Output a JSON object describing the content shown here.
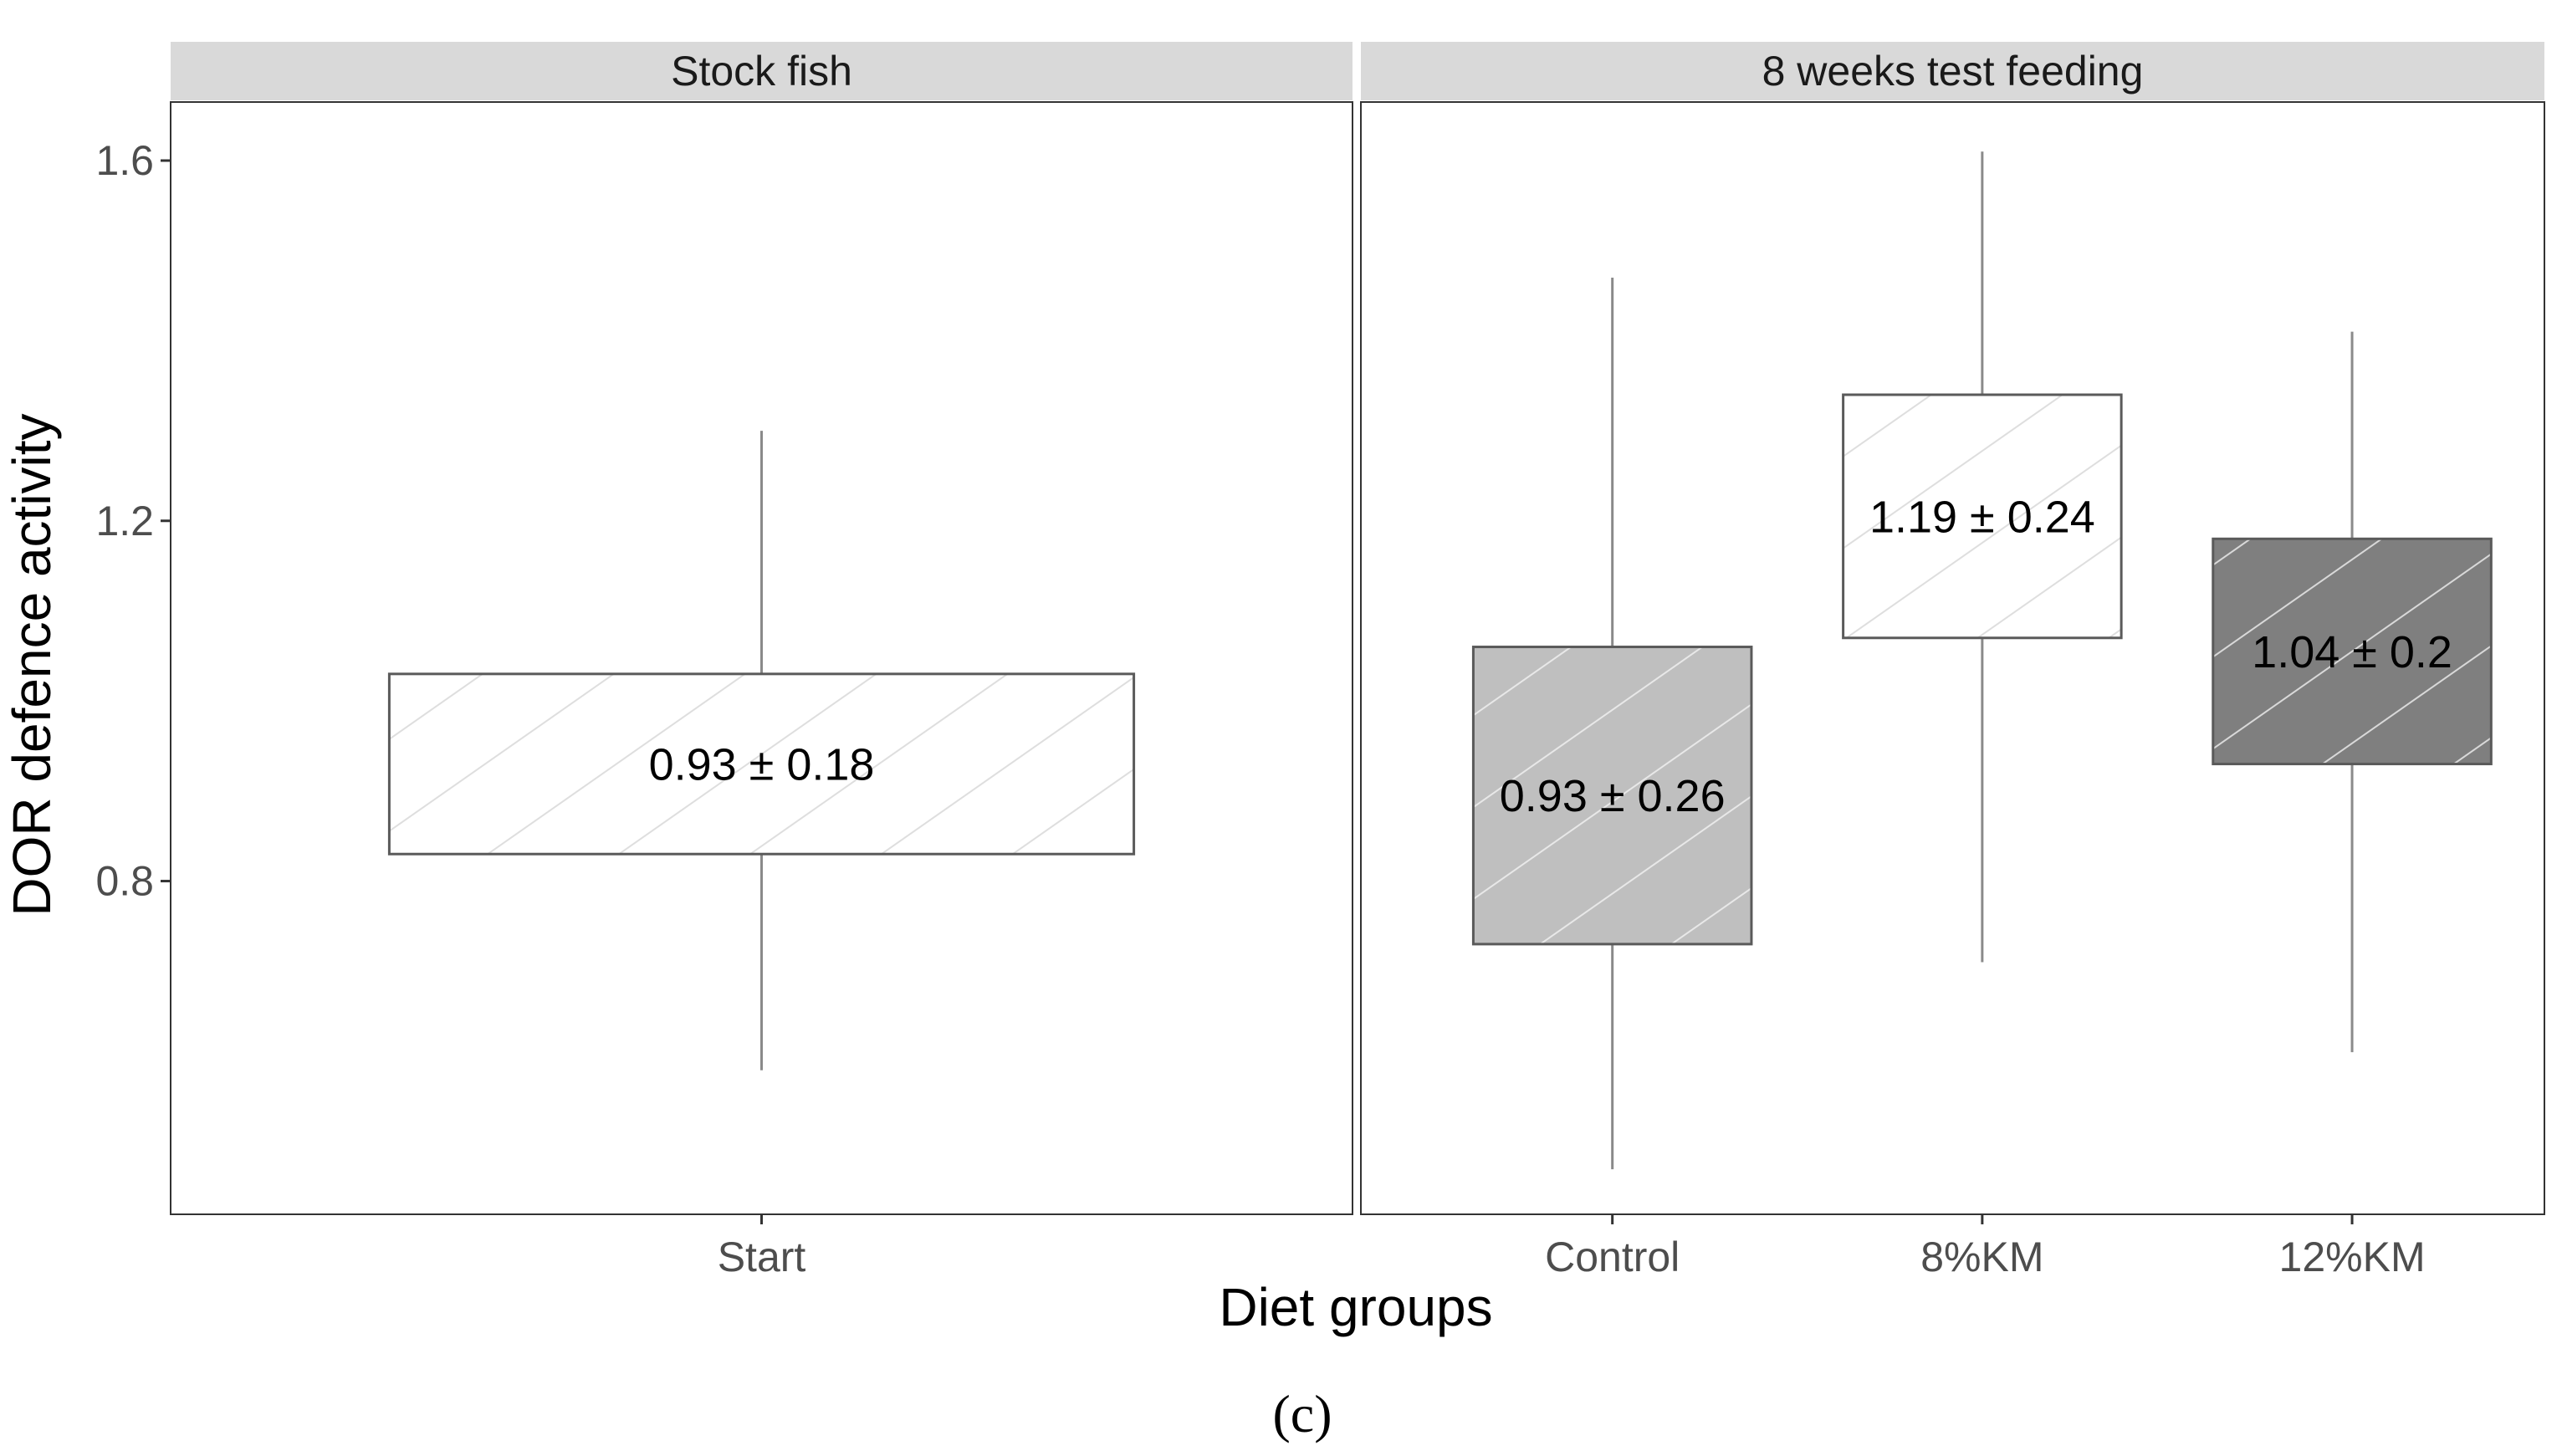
{
  "chart_data": {
    "type": "boxplot",
    "ylabel": "DOR defence activity",
    "xlabel": "Diet groups",
    "caption": "(c)",
    "ylim": [
      0.43,
      1.665
    ],
    "yticks": [
      {
        "value": 0.8,
        "label": "0.8"
      },
      {
        "value": 1.2,
        "label": "1.2"
      },
      {
        "value": 1.6,
        "label": "1.6"
      }
    ],
    "panels": [
      {
        "title": "Stock fish",
        "groups": [
          {
            "category": "Start",
            "q1": 0.83,
            "q3": 1.03,
            "whisker_low": 0.59,
            "whisker_high": 1.3,
            "label": "0.93  ±  0.18",
            "fill": "#ffffff",
            "hatch": "#dedede"
          }
        ]
      },
      {
        "title": "8 weeks test feeding",
        "groups": [
          {
            "category": "Control",
            "q1": 0.73,
            "q3": 1.06,
            "whisker_low": 0.48,
            "whisker_high": 1.47,
            "label": "0.93  ±  0.26",
            "fill": "#bfbfbf",
            "hatch": "#e8e8e8"
          },
          {
            "category": "8%KM",
            "q1": 1.07,
            "q3": 1.34,
            "whisker_low": 0.71,
            "whisker_high": 1.61,
            "label": "1.19  ±  0.24",
            "fill": "#ffffff",
            "hatch": "#dedede"
          },
          {
            "category": "12%KM",
            "q1": 0.93,
            "q3": 1.18,
            "whisker_low": 0.61,
            "whisker_high": 1.41,
            "label": "1.04  ±  0.2",
            "fill": "#7f7f7f",
            "hatch": "#d9d9d9"
          }
        ]
      }
    ]
  }
}
